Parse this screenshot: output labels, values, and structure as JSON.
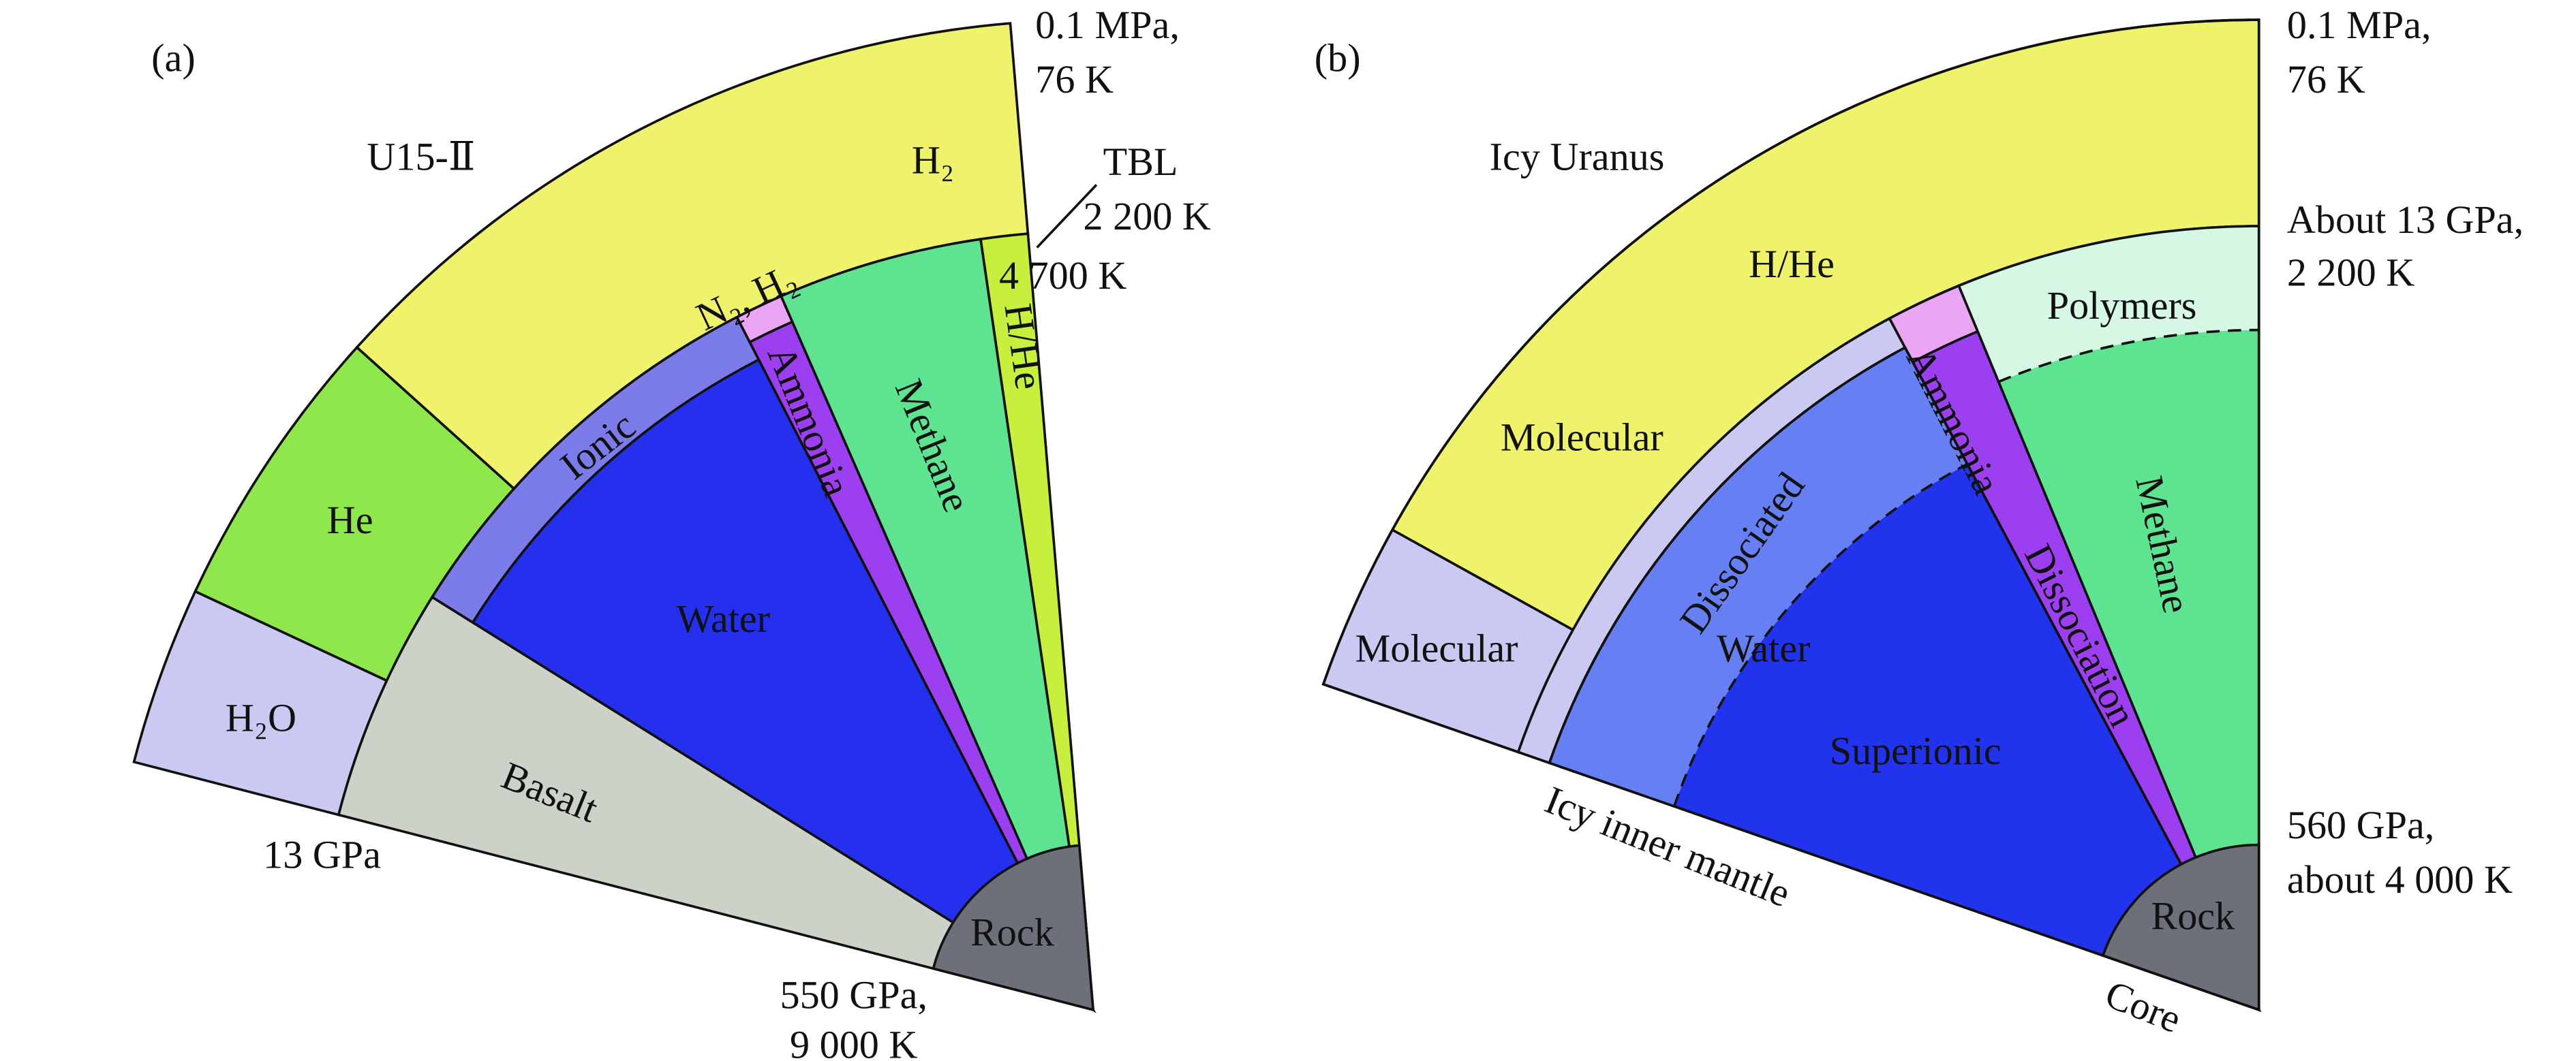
{
  "panel_a": {
    "label": "(a)",
    "top_pressure": "0.1 MPa,",
    "top_temperature": "76 K",
    "model": "U15-Ⅱ",
    "tbl": "TBL",
    "tbl_temperature": "2 200 K",
    "tbl_inner_temperature": "4 700 K",
    "layers": {
      "h2": "H₂",
      "n2_h2": "N₂, H₂",
      "ionic": "Ionic",
      "ammonia": "Ammonia",
      "methane": "Methane",
      "h_he": "H/He",
      "he": "He",
      "water": "Water",
      "h2o": "H₂O",
      "basalt": "Basalt",
      "rock": "Rock"
    },
    "pressure_13": "13 GPa",
    "bottom_pressure": "550 GPa,",
    "bottom_temperature": "9 000 K"
  },
  "panel_b": {
    "label": "(b)",
    "top_pressure": "0.1 MPa,",
    "top_temperature": "76 K",
    "model": "Icy Uranus",
    "mid_pressure": "About 13 GPa,",
    "mid_temperature": "2 200 K",
    "layers": {
      "h_he": "H/He",
      "polymers": "Polymers",
      "molecular_outer": "Molecular",
      "molecular_inner": "Molecular",
      "dissociated": "Dissociated",
      "water": "Water",
      "ammonia": "Ammonia",
      "dissociation": "Dissociation",
      "methane": "Methane",
      "superionic": "Superionic",
      "rock": "Rock"
    },
    "bottom_pressure": "560 GPa,",
    "bottom_temperature": "about 4 000 K",
    "mantle": "Icy inner mantle",
    "core": "Core"
  }
}
